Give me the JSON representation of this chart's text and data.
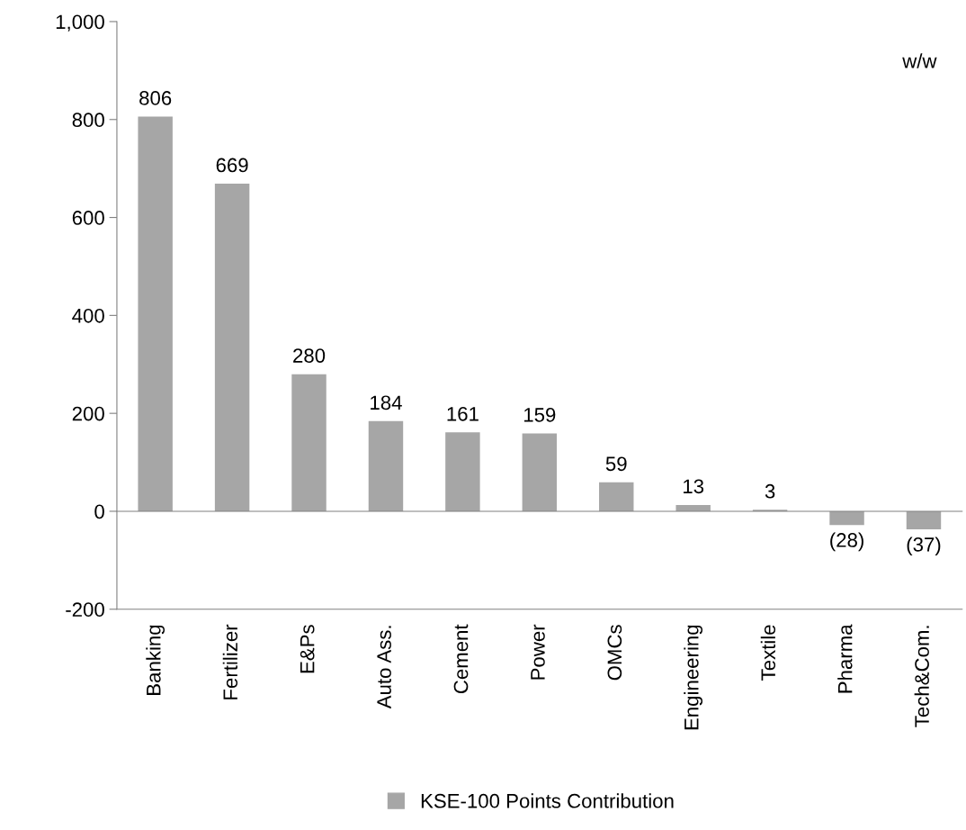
{
  "chart_data": {
    "type": "bar",
    "categories": [
      "Banking",
      "Fertilizer",
      "E&Ps",
      "Auto Ass.",
      "Cement",
      "Power",
      "OMCs",
      "Engineering",
      "Textile",
      "Pharma",
      "Tech&Com."
    ],
    "series": [
      {
        "name": "KSE-100 Points Contribution",
        "color": "#a6a6a6",
        "values": [
          806,
          669,
          280,
          184,
          161,
          159,
          59,
          13,
          3,
          -28,
          -37
        ],
        "value_labels": [
          "806",
          "669",
          "280",
          "184",
          "161",
          "159",
          "59",
          "13",
          "3",
          "(28)",
          "(37)"
        ]
      }
    ],
    "ylim": [
      -200,
      1000
    ],
    "yticks": [
      {
        "value": -200,
        "label": "-200"
      },
      0,
      200,
      400,
      600,
      800,
      {
        "value": 1000,
        "label": "1,000"
      }
    ],
    "annotations": [
      "w/w"
    ],
    "legend": "bottom"
  }
}
